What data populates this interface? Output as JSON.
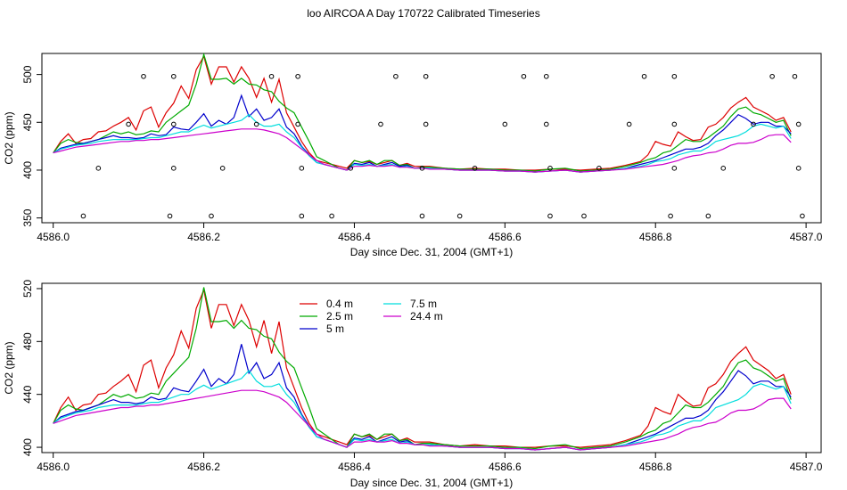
{
  "title": "loo AIRCOA A  Day 170722  Calibrated Timeseries",
  "colors": {
    "0.4 m": "#dd0000",
    "2.5 m": "#00aa00",
    "5 m": "#0000cc",
    "7.5 m": "#00dddd",
    "24.4 m": "#cc00cc",
    "axis": "#000000",
    "points": "#000000"
  },
  "chart_data": [
    {
      "type": "scatter+line",
      "xlabel": "Day since Dec. 31, 2004 (GMT+1)",
      "ylabel": "CO2 (ppm)",
      "xlim": [
        4585.985,
        4587.02
      ],
      "ylim": [
        345,
        522
      ],
      "xticks": [
        4586.0,
        4586.2,
        4586.4,
        4586.6,
        4586.8,
        4587.0
      ],
      "xtick_labels": [
        "4586.0",
        "4586.2",
        "4586.4",
        "4586.6",
        "4586.8",
        "4587.0"
      ],
      "yticks": [
        350,
        400,
        450,
        500
      ],
      "ytick_labels": [
        "350",
        "400",
        "450",
        "500"
      ],
      "grid": false,
      "x_shared": [
        4586.0,
        4586.01,
        4586.02,
        4586.03,
        4586.04,
        4586.05,
        4586.06,
        4586.07,
        4586.08,
        4586.09,
        4586.1,
        4586.11,
        4586.12,
        4586.13,
        4586.14,
        4586.15,
        4586.16,
        4586.17,
        4586.18,
        4586.19,
        4586.2,
        4586.21,
        4586.22,
        4586.23,
        4586.24,
        4586.25,
        4586.26,
        4586.27,
        4586.28,
        4586.29,
        4586.3,
        4586.31,
        4586.32,
        4586.33,
        4586.34,
        4586.35,
        4586.36,
        4586.37,
        4586.38,
        4586.39,
        4586.4,
        4586.41,
        4586.42,
        4586.43,
        4586.44,
        4586.45,
        4586.46,
        4586.47,
        4586.48,
        4586.49,
        4586.5,
        4586.52,
        4586.54,
        4586.56,
        4586.58,
        4586.6,
        4586.62,
        4586.64,
        4586.66,
        4586.68,
        4586.7,
        4586.72,
        4586.74,
        4586.76,
        4586.78,
        4586.79,
        4586.8,
        4586.81,
        4586.82,
        4586.83,
        4586.84,
        4586.85,
        4586.86,
        4586.87,
        4586.88,
        4586.89,
        4586.9,
        4586.91,
        4586.92,
        4586.93,
        4586.94,
        4586.95,
        4586.96,
        4586.97,
        4586.98
      ],
      "series": [
        {
          "name": "0.4 m",
          "values": [
            418,
            430,
            438,
            428,
            432,
            433,
            440,
            441,
            446,
            450,
            455,
            442,
            462,
            466,
            445,
            460,
            470,
            488,
            475,
            505,
            519,
            490,
            508,
            508,
            492,
            508,
            496,
            476,
            496,
            471,
            495,
            460,
            445,
            430,
            418,
            410,
            408,
            406,
            404,
            402,
            410,
            408,
            409,
            406,
            408,
            410,
            405,
            407,
            404,
            404,
            404,
            402,
            401,
            402,
            401,
            401,
            400,
            400,
            401,
            401,
            400,
            401,
            402,
            405,
            409,
            416,
            430,
            427,
            425,
            440,
            435,
            431,
            432,
            445,
            448,
            455,
            465,
            471,
            476,
            466,
            462,
            458,
            452,
            455,
            440
          ]
        },
        {
          "name": "2.5 m",
          "values": [
            418,
            428,
            432,
            429,
            428,
            430,
            432,
            436,
            440,
            438,
            440,
            437,
            438,
            441,
            440,
            450,
            456,
            462,
            468,
            490,
            521,
            495,
            495,
            496,
            490,
            496,
            490,
            489,
            484,
            482,
            472,
            465,
            460,
            445,
            430,
            414,
            410,
            406,
            402,
            400,
            410,
            408,
            410,
            406,
            410,
            410,
            405,
            406,
            402,
            403,
            403,
            402,
            401,
            401,
            401,
            400,
            400,
            399,
            401,
            402,
            399,
            400,
            401,
            404,
            408,
            411,
            413,
            418,
            420,
            426,
            432,
            430,
            430,
            434,
            440,
            446,
            456,
            464,
            466,
            460,
            458,
            454,
            450,
            452,
            436
          ]
        },
        {
          "name": "5 m",
          "values": [
            418,
            423,
            425,
            427,
            428,
            430,
            432,
            434,
            436,
            434,
            434,
            433,
            434,
            438,
            436,
            437,
            445,
            443,
            442,
            450,
            459,
            446,
            452,
            448,
            455,
            478,
            456,
            464,
            452,
            455,
            464,
            445,
            438,
            425,
            416,
            408,
            406,
            404,
            402,
            400,
            407,
            406,
            408,
            404,
            406,
            408,
            404,
            405,
            402,
            402,
            402,
            401,
            400,
            400,
            400,
            399,
            399,
            398,
            399,
            400,
            398,
            399,
            400,
            402,
            406,
            408,
            410,
            413,
            416,
            419,
            422,
            422,
            424,
            428,
            436,
            442,
            450,
            458,
            454,
            448,
            450,
            450,
            446,
            446,
            438
          ]
        },
        {
          "name": "7.5 m",
          "values": [
            418,
            422,
            424,
            426,
            427,
            428,
            430,
            431,
            432,
            432,
            432,
            432,
            433,
            434,
            434,
            436,
            438,
            440,
            440,
            444,
            447,
            444,
            446,
            448,
            450,
            452,
            458,
            450,
            446,
            446,
            448,
            440,
            434,
            424,
            415,
            408,
            406,
            404,
            402,
            400,
            406,
            405,
            406,
            404,
            405,
            406,
            403,
            404,
            402,
            402,
            402,
            401,
            400,
            400,
            400,
            399,
            399,
            398,
            399,
            400,
            398,
            399,
            400,
            402,
            404,
            406,
            409,
            410,
            412,
            416,
            418,
            420,
            420,
            424,
            430,
            432,
            434,
            436,
            440,
            446,
            448,
            446,
            444,
            446,
            433
          ]
        },
        {
          "name": "24.4 m",
          "values": [
            418,
            420,
            422,
            424,
            425,
            426,
            427,
            428,
            429,
            430,
            430,
            431,
            431,
            432,
            432,
            433,
            434,
            435,
            436,
            437,
            438,
            439,
            440,
            441,
            442,
            443,
            443,
            443,
            442,
            440,
            438,
            434,
            428,
            422,
            416,
            410,
            406,
            404,
            402,
            400,
            404,
            404,
            405,
            404,
            404,
            405,
            403,
            403,
            402,
            402,
            401,
            401,
            400,
            400,
            400,
            399,
            399,
            398,
            399,
            400,
            398,
            399,
            400,
            401,
            403,
            404,
            405,
            406,
            408,
            410,
            413,
            415,
            416,
            418,
            419,
            422,
            426,
            428,
            428,
            429,
            432,
            436,
            437,
            437,
            429
          ]
        }
      ],
      "points": [
        {
          "x": 4586.04,
          "y": 352
        },
        {
          "x": 4586.06,
          "y": 402
        },
        {
          "x": 4586.1,
          "y": 448
        },
        {
          "x": 4586.12,
          "y": 498
        },
        {
          "x": 4586.155,
          "y": 352
        },
        {
          "x": 4586.16,
          "y": 402
        },
        {
          "x": 4586.16,
          "y": 448
        },
        {
          "x": 4586.16,
          "y": 498
        },
        {
          "x": 4586.21,
          "y": 352
        },
        {
          "x": 4586.225,
          "y": 402
        },
        {
          "x": 4586.27,
          "y": 448
        },
        {
          "x": 4586.29,
          "y": 498
        },
        {
          "x": 4586.325,
          "y": 498
        },
        {
          "x": 4586.325,
          "y": 448
        },
        {
          "x": 4586.33,
          "y": 402
        },
        {
          "x": 4586.33,
          "y": 352
        },
        {
          "x": 4586.37,
          "y": 352
        },
        {
          "x": 4586.395,
          "y": 402
        },
        {
          "x": 4586.435,
          "y": 448
        },
        {
          "x": 4586.455,
          "y": 498
        },
        {
          "x": 4586.49,
          "y": 352
        },
        {
          "x": 4586.49,
          "y": 402
        },
        {
          "x": 4586.495,
          "y": 448
        },
        {
          "x": 4586.495,
          "y": 498
        },
        {
          "x": 4586.54,
          "y": 352
        },
        {
          "x": 4586.56,
          "y": 402
        },
        {
          "x": 4586.6,
          "y": 448
        },
        {
          "x": 4586.625,
          "y": 498
        },
        {
          "x": 4586.655,
          "y": 498
        },
        {
          "x": 4586.655,
          "y": 448
        },
        {
          "x": 4586.66,
          "y": 402
        },
        {
          "x": 4586.66,
          "y": 352
        },
        {
          "x": 4586.705,
          "y": 352
        },
        {
          "x": 4586.725,
          "y": 402
        },
        {
          "x": 4586.765,
          "y": 448
        },
        {
          "x": 4586.785,
          "y": 498
        },
        {
          "x": 4586.82,
          "y": 352
        },
        {
          "x": 4586.825,
          "y": 402
        },
        {
          "x": 4586.825,
          "y": 448
        },
        {
          "x": 4586.825,
          "y": 498
        },
        {
          "x": 4586.87,
          "y": 352
        },
        {
          "x": 4586.89,
          "y": 402
        },
        {
          "x": 4586.93,
          "y": 448
        },
        {
          "x": 4586.955,
          "y": 498
        },
        {
          "x": 4586.985,
          "y": 498
        },
        {
          "x": 4586.99,
          "y": 448
        },
        {
          "x": 4586.99,
          "y": 402
        },
        {
          "x": 4586.995,
          "y": 352
        }
      ]
    },
    {
      "type": "line",
      "xlabel": "Day since Dec. 31, 2004 (GMT+1)",
      "ylabel": "CO2 (ppm)",
      "xlim": [
        4585.985,
        4587.02
      ],
      "ylim": [
        396,
        524
      ],
      "xticks": [
        4586.0,
        4586.2,
        4586.4,
        4586.6,
        4586.8,
        4587.0
      ],
      "xtick_labels": [
        "4586.0",
        "4586.2",
        "4586.4",
        "4586.6",
        "4586.8",
        "4587.0"
      ],
      "yticks": [
        400,
        440,
        480,
        520
      ],
      "ytick_labels": [
        "400",
        "440",
        "480",
        "520"
      ],
      "grid": false,
      "legend": {
        "placement": "top-center",
        "entries": [
          "0.4 m",
          "2.5 m",
          "5 m",
          "7.5 m",
          "24.4 m"
        ]
      },
      "uses_series_from_panel": 0
    }
  ]
}
